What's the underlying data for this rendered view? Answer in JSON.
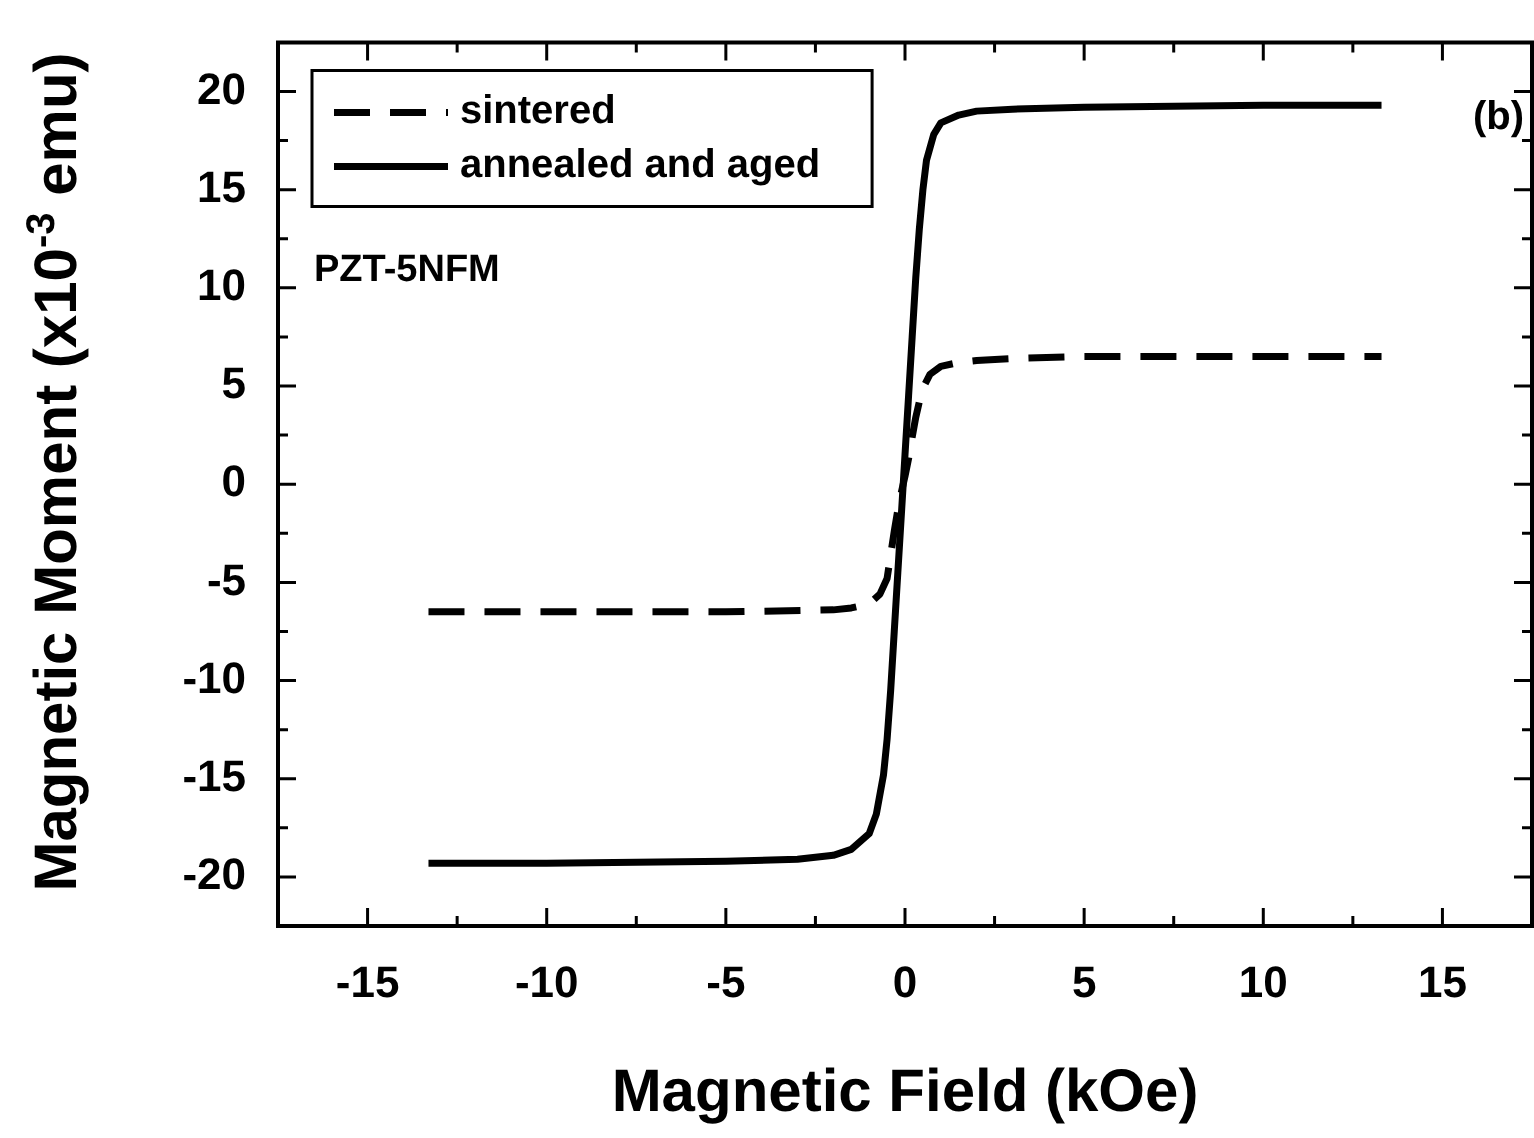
{
  "chart_data": {
    "type": "line",
    "xlabel": "Magnetic Field (kOe)",
    "ylabel": "Magnetic Moment (x10$^{-3}$ emu)",
    "annotations": [
      "PZT-5NFM",
      "(b)"
    ],
    "xlim": [
      -17.5,
      17.5
    ],
    "ylim": [
      -22.5,
      22.5
    ],
    "xticks": [
      {
        "value": -17.5,
        "label": null
      },
      -15,
      {
        "value": -12.5,
        "label": null
      },
      -10,
      {
        "value": -7.5,
        "label": null
      },
      -5,
      {
        "value": -2.5,
        "label": null
      },
      0,
      {
        "value": 2.5,
        "label": null
      },
      5,
      {
        "value": 7.5,
        "label": null
      },
      10,
      {
        "value": 12.5,
        "label": null
      },
      15
    ],
    "yticks": [
      {
        "value": -22.5,
        "label": null
      },
      -20,
      {
        "value": -17.5,
        "label": null
      },
      -15,
      {
        "value": -12.5,
        "label": null
      },
      -10,
      {
        "value": -7.5,
        "label": null
      },
      -5,
      {
        "value": -2.5,
        "label": null
      },
      0,
      {
        "value": 2.5,
        "label": null
      },
      5,
      {
        "value": 7.5,
        "label": null
      },
      10,
      {
        "value": 12.5,
        "label": null
      },
      15,
      {
        "value": 17.5,
        "label": null
      },
      20
    ],
    "grid": false,
    "legend": "top left",
    "marker": "none",
    "series": [
      {
        "name": "sintered",
        "color": "#000000",
        "line_style": "dashed",
        "x": [
          -13.3,
          -10,
          -5,
          -2,
          -1.5,
          -1,
          -0.7,
          -0.5,
          -0.4,
          -0.3,
          -0.2,
          -0.1,
          0,
          0.1,
          0.2,
          0.3,
          0.4,
          0.5,
          0.7,
          1,
          1.5,
          2,
          3,
          5,
          10,
          13.3
        ],
        "values": [
          -6.5,
          -6.5,
          -6.5,
          -6.4,
          -6.3,
          -6.1,
          -5.6,
          -4.8,
          -3.6,
          -2.4,
          -1.3,
          -0.4,
          0.4,
          1.3,
          2.4,
          3.4,
          4.2,
          4.9,
          5.6,
          6.0,
          6.2,
          6.3,
          6.4,
          6.5,
          6.5,
          6.5
        ]
      },
      {
        "name": "annealed and aged",
        "color": "#000000",
        "line_style": "solid",
        "x": [
          -13.3,
          -10,
          -5,
          -3,
          -2,
          -1.5,
          -1,
          -0.8,
          -0.6,
          -0.5,
          -0.4,
          -0.3,
          -0.2,
          -0.1,
          0,
          0.1,
          0.2,
          0.3,
          0.4,
          0.5,
          0.6,
          0.8,
          1,
          1.5,
          2,
          3,
          5,
          10,
          13.3
        ],
        "values": [
          -19.3,
          -19.3,
          -19.2,
          -19.1,
          -18.9,
          -18.6,
          -17.8,
          -16.8,
          -14.8,
          -13,
          -10.5,
          -7.5,
          -4.5,
          -1.5,
          1.5,
          4.5,
          7.5,
          10.5,
          13,
          15,
          16.5,
          17.8,
          18.4,
          18.8,
          19,
          19.1,
          19.2,
          19.3,
          19.3
        ]
      }
    ]
  }
}
